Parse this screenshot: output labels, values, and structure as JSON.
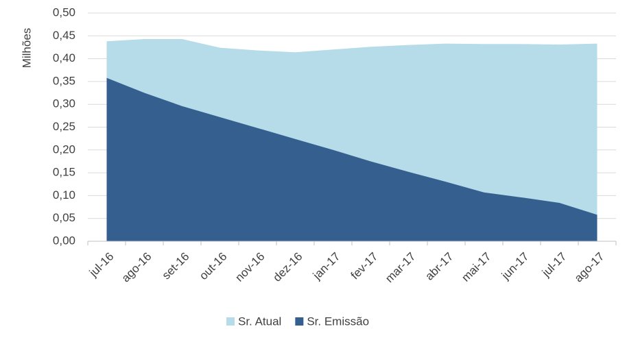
{
  "chart_data": {
    "type": "area",
    "y_label": "Milhões",
    "categories": [
      "jul-16",
      "ago-16",
      "set-16",
      "out-16",
      "nov-16",
      "dez-16",
      "jan-17",
      "fev-17",
      "mar-17",
      "abr-17",
      "mai-17",
      "jun-17",
      "jul-17",
      "ago-17"
    ],
    "series": [
      {
        "name": "Sr. Atual",
        "color": "#b5dce8",
        "values": [
          0.438,
          0.443,
          0.443,
          0.424,
          0.418,
          0.414,
          0.42,
          0.426,
          0.43,
          0.433,
          0.432,
          0.432,
          0.431,
          0.433
        ]
      },
      {
        "name": "Sr. Emissão",
        "color": "#355f8f",
        "values": [
          0.358,
          0.325,
          0.296,
          0.272,
          0.248,
          0.224,
          0.2,
          0.175,
          0.152,
          0.13,
          0.107,
          0.096,
          0.084,
          0.058
        ]
      }
    ],
    "ylim": [
      0,
      0.5
    ],
    "yticks": [
      {
        "value": 0,
        "label": "0,00"
      },
      {
        "value": 0.05,
        "label": "0,05"
      },
      {
        "value": 0.1,
        "label": "0,10"
      },
      {
        "value": 0.15,
        "label": "0,15"
      },
      {
        "value": 0.2,
        "label": "0,20"
      },
      {
        "value": 0.25,
        "label": "0,25"
      },
      {
        "value": 0.3,
        "label": "0,30"
      },
      {
        "value": 0.35,
        "label": "0,35"
      },
      {
        "value": 0.4,
        "label": "0,40"
      },
      {
        "value": 0.45,
        "label": "0,45"
      },
      {
        "value": 0.5,
        "label": "0,50"
      }
    ],
    "grid": true,
    "legend": "bottom"
  }
}
